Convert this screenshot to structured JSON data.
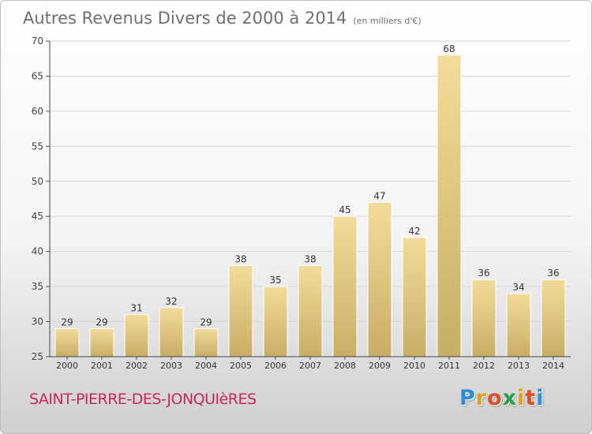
{
  "header": {
    "title": "Autres Revenus Divers de 2000 à 2014",
    "unit": "(en milliers d'€)"
  },
  "footer": {
    "town": "SAINT-PIERRE-DES-JONQUIèRES",
    "logo_letters": [
      "P",
      "r",
      "o",
      "x",
      "i",
      "t",
      "i"
    ],
    "logo_colors": [
      "#2a8fd6",
      "#e0a020",
      "#d9502a",
      "#2aa04a",
      "#e0a020",
      "#d9502a",
      "#2a8fd6"
    ]
  },
  "colors": {
    "bar_light": "#f3dc9a",
    "bar_dark": "#c8ad66",
    "town": "#c8275c"
  },
  "chart_data": {
    "type": "bar",
    "title": "Autres Revenus Divers de 2000 à 2014",
    "xlabel": "",
    "ylabel": "",
    "categories": [
      "2000",
      "2001",
      "2002",
      "2003",
      "2004",
      "2005",
      "2006",
      "2007",
      "2008",
      "2009",
      "2010",
      "2011",
      "2012",
      "2013",
      "2014"
    ],
    "values": [
      29,
      29,
      31,
      32,
      29,
      38,
      35,
      38,
      45,
      47,
      42,
      68,
      36,
      34,
      36
    ],
    "ylim": [
      25,
      70
    ],
    "yticks": [
      25,
      30,
      35,
      40,
      45,
      50,
      55,
      60,
      65,
      70
    ],
    "grid": true
  }
}
